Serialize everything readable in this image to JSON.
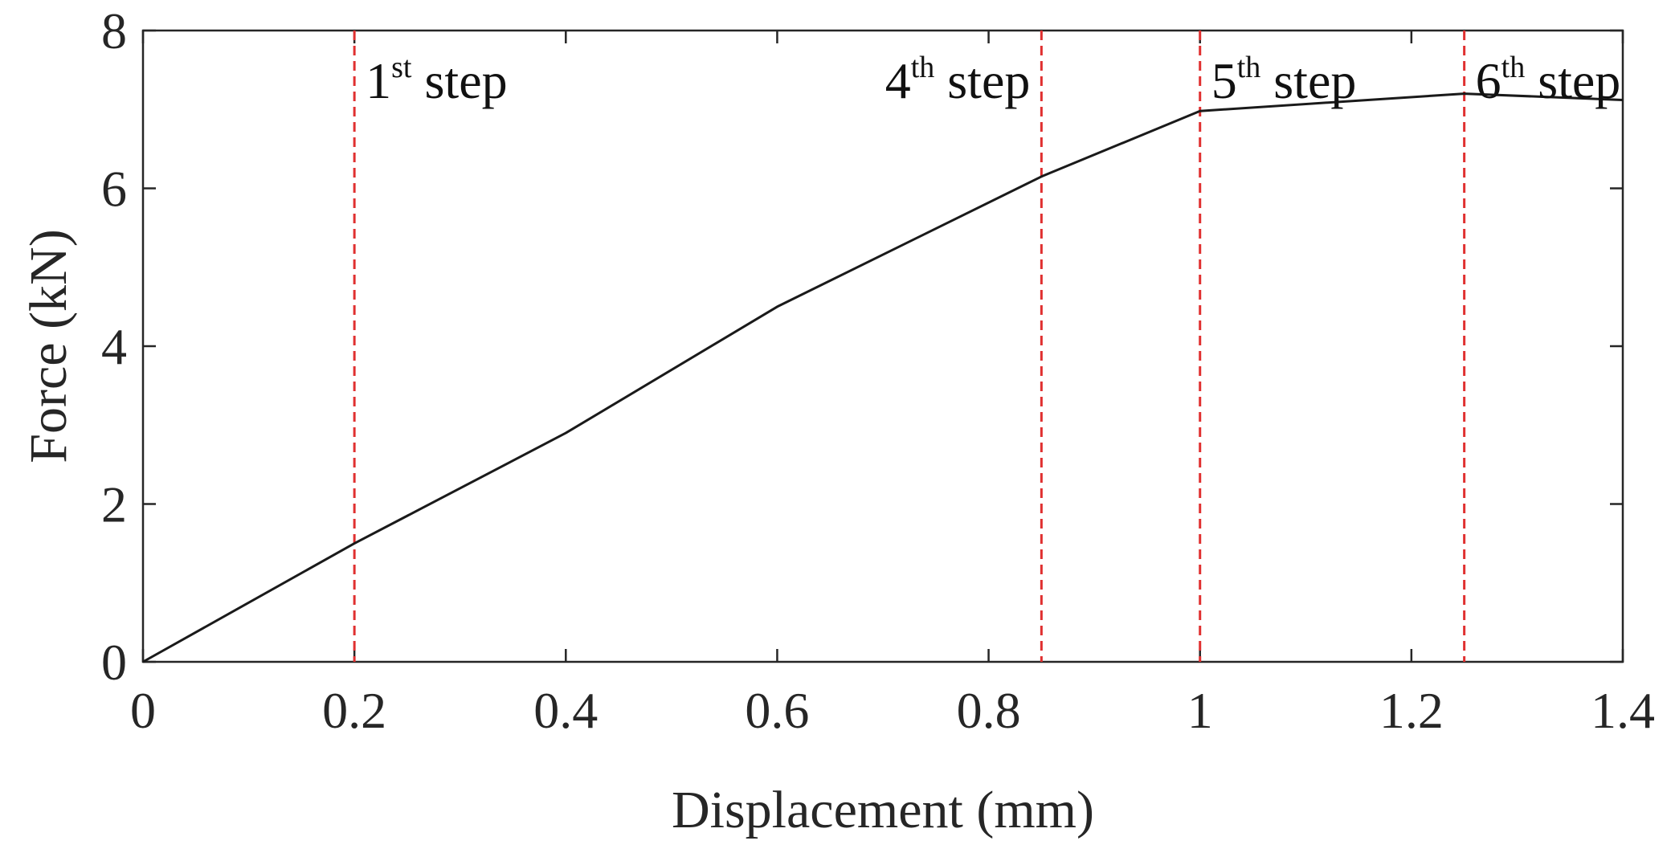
{
  "chart_data": {
    "type": "line",
    "xlabel": "Displacement (mm)",
    "ylabel": "Force (kN)",
    "xlim": [
      0,
      1.4
    ],
    "ylim": [
      0,
      8
    ],
    "xticks": [
      0,
      0.2,
      0.4,
      0.6,
      0.8,
      1,
      1.2,
      1.4
    ],
    "yticks": [
      0,
      2,
      4,
      6,
      8
    ],
    "xtick_labels": [
      "0",
      "0.2",
      "0.4",
      "0.6",
      "0.8",
      "1",
      "1.2",
      "1.4"
    ],
    "ytick_labels": [
      "0",
      "2",
      "4",
      "6",
      "8"
    ],
    "grid": false,
    "series": [
      {
        "color": "#1a1a1a",
        "x": [
          0,
          0.2,
          0.4,
          0.6,
          0.85,
          1.0,
          1.25,
          1.4
        ],
        "y": [
          0,
          1.5,
          2.9,
          4.5,
          6.15,
          6.98,
          7.2,
          7.12
        ]
      }
    ],
    "annotations": [
      {
        "x": 0.2,
        "base": "1",
        "sup": "st",
        "rest": " step",
        "anchor": "start"
      },
      {
        "x": 0.85,
        "base": "4",
        "sup": "th",
        "rest": " step",
        "anchor": "end"
      },
      {
        "x": 1.0,
        "base": "5",
        "sup": "th",
        "rest": " step",
        "anchor": "start"
      },
      {
        "x": 1.25,
        "base": "6",
        "sup": "th",
        "rest": " step",
        "anchor": "start"
      }
    ],
    "step_line_color": "#e03030"
  }
}
